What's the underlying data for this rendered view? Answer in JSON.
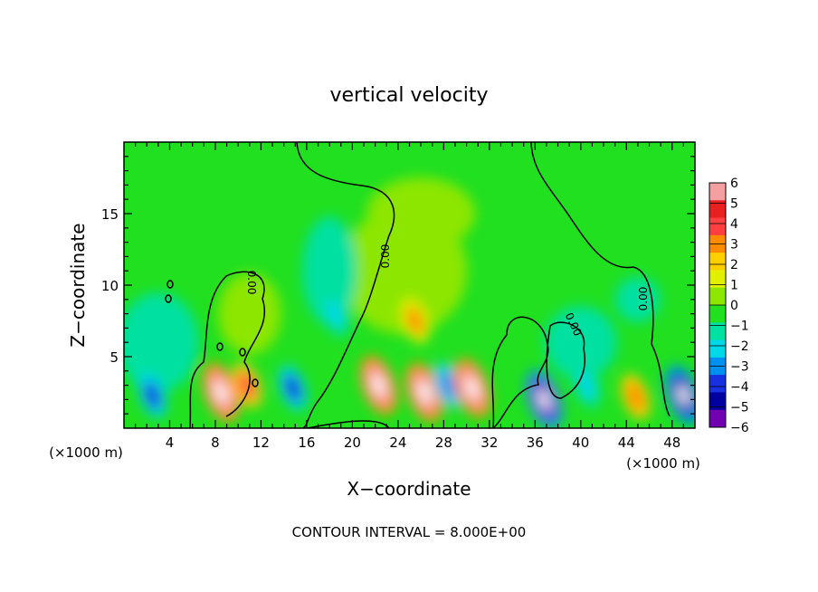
{
  "chart_data": {
    "type": "heatmap",
    "title": "vertical velocity",
    "xlabel": "X−coordinate",
    "ylabel": "Z−coordinate",
    "x_unit_left": "(×1000 m)",
    "x_unit_right": "(×1000 m)",
    "footer": "CONTOUR INTERVAL = 8.000E+00",
    "xlim": [
      0,
      50
    ],
    "ylim": [
      0,
      20
    ],
    "x_ticks": [
      4,
      8,
      12,
      16,
      20,
      24,
      28,
      32,
      36,
      40,
      44,
      48
    ],
    "y_ticks": [
      5,
      10,
      15
    ],
    "colorbar": {
      "levels": [
        6,
        5,
        4,
        3,
        2,
        1,
        0,
        -1,
        -2,
        -3,
        -4,
        -5,
        -6
      ],
      "colors": [
        "#f4a0a0",
        "#e82020",
        "#ff4040",
        "#ff8c00",
        "#ffd000",
        "#e0f000",
        "#8ce600",
        "#20e020",
        "#00e0a0",
        "#00d8e8",
        "#0090f0",
        "#1830e0",
        "#0000a0",
        "#7000b0"
      ]
    },
    "contour_label": "0.00",
    "features": [
      {
        "x": 2.5,
        "z": 2.3,
        "w": -4.5
      },
      {
        "x": 8.5,
        "z": 2.5,
        "w": 6.5
      },
      {
        "x": 10.8,
        "z": 3.0,
        "w": 4.0
      },
      {
        "x": 14.8,
        "z": 2.8,
        "w": -4.2
      },
      {
        "x": 18.5,
        "z": 8.0,
        "w": -2.5
      },
      {
        "x": 22.3,
        "z": 3.0,
        "w": 6.0
      },
      {
        "x": 25.5,
        "z": 7.5,
        "w": 3.0
      },
      {
        "x": 26.3,
        "z": 2.5,
        "w": 6.2
      },
      {
        "x": 28.4,
        "z": 3.0,
        "w": -3.5
      },
      {
        "x": 30.5,
        "z": 2.8,
        "w": 6.5
      },
      {
        "x": 36.8,
        "z": 2.0,
        "w": -6.5
      },
      {
        "x": 40.5,
        "z": 3.0,
        "w": -3.0
      },
      {
        "x": 44.8,
        "z": 2.2,
        "w": 3.5
      },
      {
        "x": 49.0,
        "z": 2.3,
        "w": -6.0
      }
    ]
  }
}
